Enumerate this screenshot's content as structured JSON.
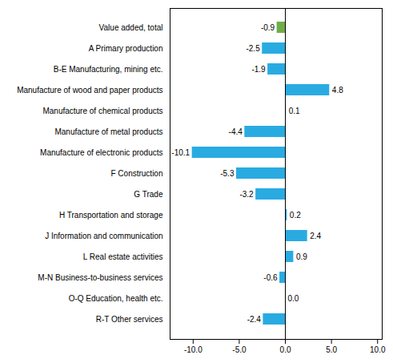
{
  "chart_data": {
    "type": "bar",
    "orientation": "horizontal",
    "categories": [
      "Value added, total",
      "A Primary production",
      "B-E Manufacturing, mining etc.",
      "Manufacture of wood and paper products",
      "Manufacture of chemical products",
      "Manufacture of metal products",
      "Manufacture of electronic products",
      "F Construction",
      "G Trade",
      "H Transportation and storage",
      "J Information and communication",
      "L Real estate activities",
      "M-N Business-to-business services",
      "O-Q Education, health etc.",
      "R-T Other services"
    ],
    "values": [
      -0.9,
      -2.5,
      -1.9,
      4.8,
      0.1,
      -4.4,
      -10.1,
      -5.3,
      -3.2,
      0.2,
      2.4,
      0.9,
      -0.6,
      0.0,
      -2.4
    ],
    "value_labels": [
      "-0.9",
      "-2.5",
      "-1.9",
      "4.8",
      "0.1",
      "-4.4",
      "-10.1",
      "-5.3",
      "-3.2",
      "0.2",
      "2.4",
      "0.9",
      "-0.6",
      "0.0",
      "-2.4"
    ],
    "colors": [
      "#70ad47",
      "#29abe2",
      "#29abe2",
      "#29abe2",
      "#29abe2",
      "#29abe2",
      "#29abe2",
      "#29abe2",
      "#29abe2",
      "#29abe2",
      "#29abe2",
      "#29abe2",
      "#29abe2",
      "#29abe2",
      "#29abe2"
    ],
    "xlim": [
      -12.5,
      10.5
    ],
    "xticks": [
      {
        "value": -10.0,
        "label": "-10.0"
      },
      {
        "value": -5.0,
        "label": "-5.0"
      },
      {
        "value": 0.0,
        "label": "0.0"
      },
      {
        "value": 5.0,
        "label": "5.0"
      },
      {
        "value": 10.0,
        "label": "10.0"
      }
    ],
    "data_labels": true,
    "grid": false
  }
}
